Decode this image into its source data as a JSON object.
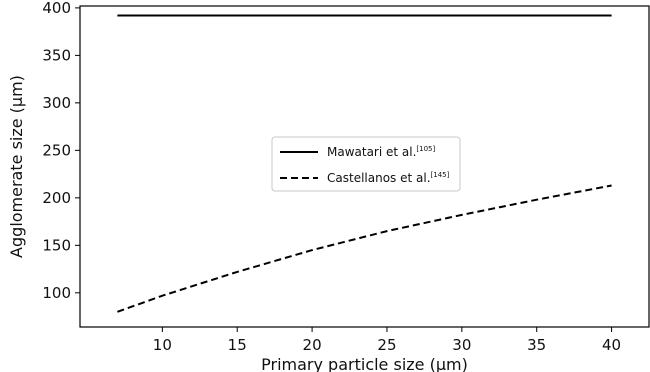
{
  "chart_data": {
    "type": "line",
    "title": "",
    "xlabel": "Primary particle size (μm)",
    "ylabel": "Agglomerate size (μm)",
    "xlim": [
      4.5,
      42.5
    ],
    "ylim": [
      64,
      402
    ],
    "xticks": [
      10,
      15,
      20,
      25,
      30,
      35,
      40
    ],
    "yticks": [
      100,
      150,
      200,
      250,
      300,
      350,
      400
    ],
    "grid": false,
    "legend_position": "center",
    "series": [
      {
        "name": "Mawatari et al.",
        "name_sup": "[105]",
        "style": "solid",
        "color": "#000000",
        "x": [
          7,
          40
        ],
        "y": [
          392,
          392
        ]
      },
      {
        "name": "Castellanos et al.",
        "name_sup": "[145]",
        "style": "dashed",
        "color": "#000000",
        "x": [
          7,
          10,
          15,
          20,
          25,
          30,
          35,
          40
        ],
        "y": [
          80,
          97,
          122,
          145,
          165,
          182,
          198,
          213
        ]
      }
    ]
  }
}
